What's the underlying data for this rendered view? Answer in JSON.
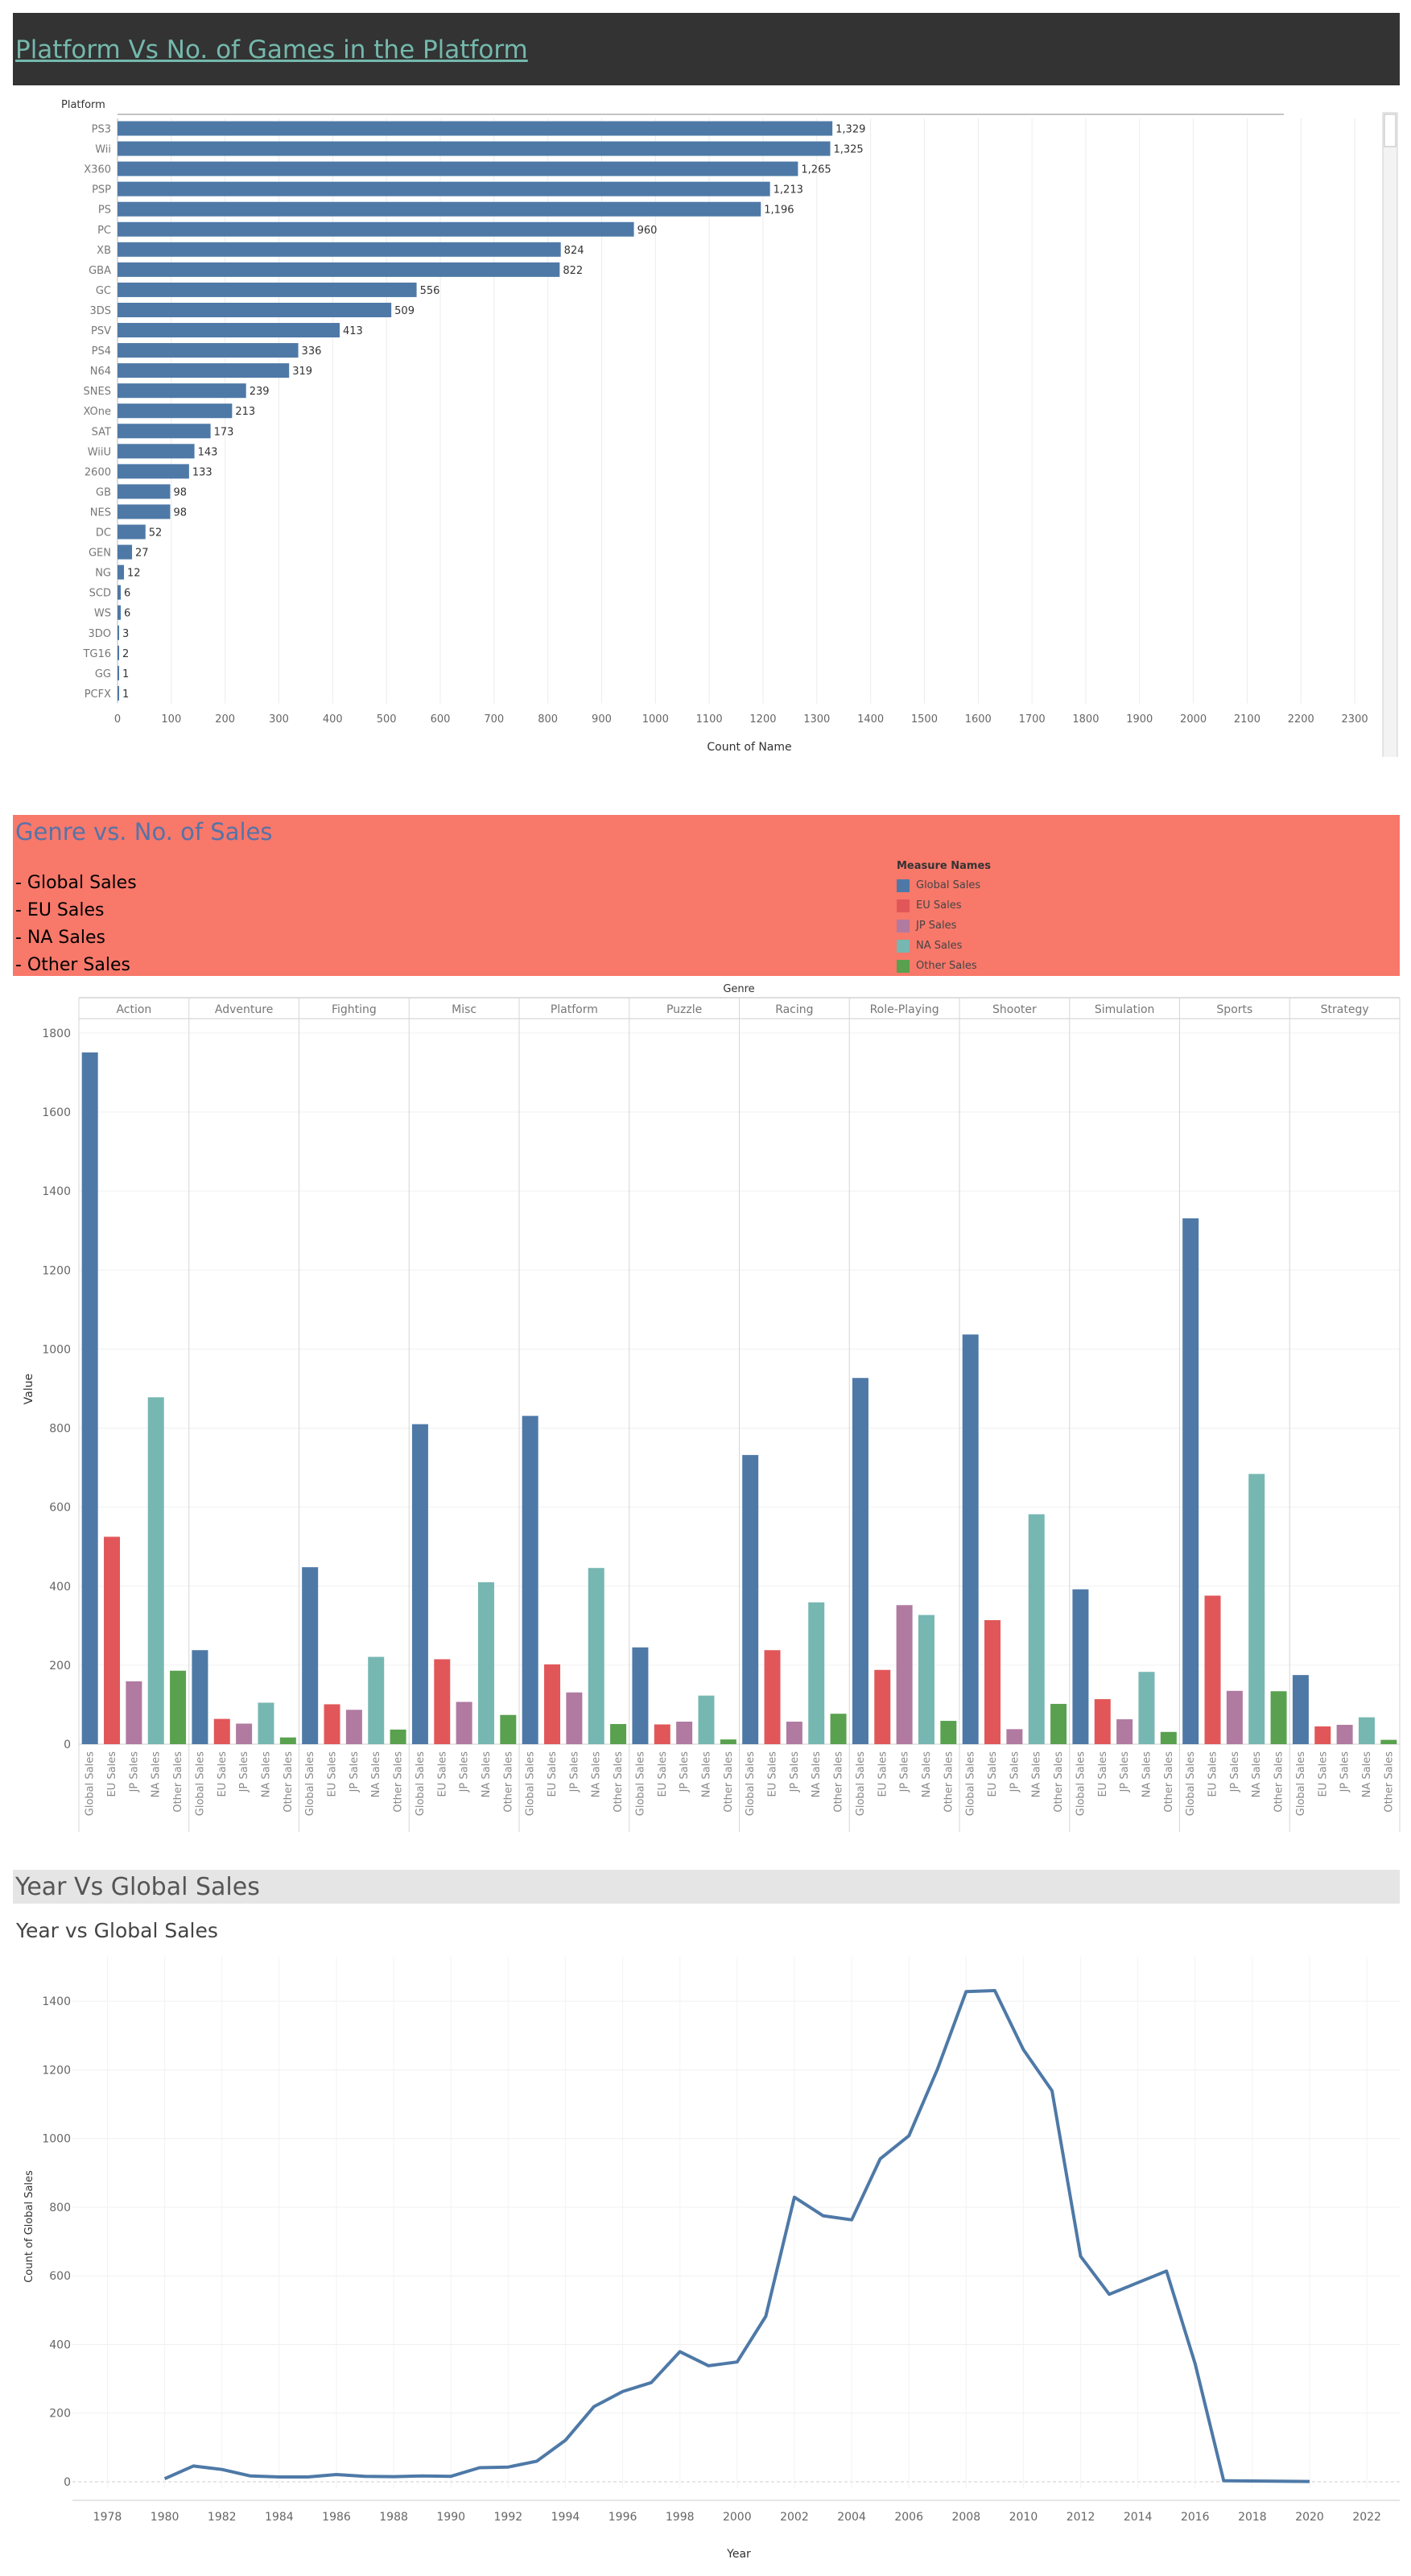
{
  "dashboard": {
    "platform_header": "Platform Vs No. of Games in the Platform",
    "genre_header": "Genre vs. No. of Sales",
    "genre_items": [
      "- Global Sales",
      "- EU Sales",
      "- NA Sales",
      "- Other Sales"
    ],
    "legend_title": "Measure Names",
    "year_header": "Year Vs Global Sales",
    "year_subtitle": "Year vs Global Sales"
  },
  "colors": {
    "bar": "#4e79a7",
    "global": "#4e79a7",
    "eu": "#e15759",
    "jp": "#b07aa1",
    "na": "#76b7b2",
    "other": "#59a14f",
    "line": "#4e79a7"
  },
  "chart_data": [
    {
      "type": "bar",
      "orientation": "horizontal",
      "row_header": "Platform",
      "xlabel": "Count of Name",
      "xlim": [
        0,
        2300
      ],
      "xticks": [
        0,
        100,
        200,
        300,
        400,
        500,
        600,
        700,
        800,
        900,
        1000,
        1100,
        1200,
        1300,
        1400,
        1500,
        1600,
        1700,
        1800,
        1900,
        2000,
        2100,
        2200,
        2300
      ],
      "categories": [
        "PS3",
        "Wii",
        "X360",
        "PSP",
        "PS",
        "PC",
        "XB",
        "GBA",
        "GC",
        "3DS",
        "PSV",
        "PS4",
        "N64",
        "SNES",
        "XOne",
        "SAT",
        "WiiU",
        "2600",
        "GB",
        "NES",
        "DC",
        "GEN",
        "NG",
        "SCD",
        "WS",
        "3DO",
        "TG16",
        "GG",
        "PCFX"
      ],
      "values": [
        1329,
        1325,
        1265,
        1213,
        1196,
        960,
        824,
        822,
        556,
        509,
        413,
        336,
        319,
        239,
        213,
        173,
        143,
        133,
        98,
        98,
        52,
        27,
        12,
        6,
        6,
        3,
        2,
        1,
        1
      ],
      "labels": [
        "1,329",
        "1,325",
        "1,265",
        "1,213",
        "1,196",
        "960",
        "824",
        "822",
        "556",
        "509",
        "413",
        "336",
        "319",
        "239",
        "213",
        "173",
        "143",
        "133",
        "98",
        "98",
        "52",
        "27",
        "12",
        "6",
        "6",
        "3",
        "2",
        "1",
        "1"
      ],
      "grid": true
    },
    {
      "type": "bar",
      "column_header": "Genre",
      "ylabel": "Value",
      "ylim": [
        0,
        1850
      ],
      "yticks": [
        0,
        200,
        400,
        600,
        800,
        1000,
        1200,
        1400,
        1600,
        1800
      ],
      "legend": "top-right",
      "legend_entries": [
        "Global Sales",
        "EU Sales",
        "JP Sales",
        "NA Sales",
        "Other Sales"
      ],
      "measures": [
        "Global Sales",
        "EU Sales",
        "JP Sales",
        "NA Sales",
        "Other Sales"
      ],
      "genres": [
        "Action",
        "Adventure",
        "Fighting",
        "Misc",
        "Platform",
        "Puzzle",
        "Racing",
        "Role-Playing",
        "Shooter",
        "Simulation",
        "Sports",
        "Strategy"
      ],
      "series": [
        {
          "name": "Global Sales",
          "values": [
            1751,
            238,
            448,
            810,
            831,
            245,
            732,
            927,
            1037,
            392,
            1331,
            175
          ]
        },
        {
          "name": "EU Sales",
          "values": [
            525,
            64,
            101,
            215,
            202,
            50,
            238,
            188,
            314,
            114,
            376,
            45
          ]
        },
        {
          "name": "JP Sales",
          "values": [
            159,
            52,
            87,
            107,
            131,
            57,
            57,
            352,
            38,
            63,
            135,
            49
          ]
        },
        {
          "name": "NA Sales",
          "values": [
            878,
            105,
            221,
            410,
            446,
            123,
            359,
            327,
            582,
            183,
            684,
            68
          ]
        },
        {
          "name": "Other Sales",
          "values": [
            186,
            17,
            37,
            74,
            51,
            12,
            77,
            59,
            102,
            31,
            134,
            11
          ]
        }
      ],
      "grid": true
    },
    {
      "type": "line",
      "title": "Year vs Global Sales",
      "xlabel": "Year",
      "ylabel": "Count of Global Sales",
      "xlim": [
        1977,
        2023
      ],
      "ylim": [
        0,
        1500
      ],
      "xticks": [
        1978,
        1980,
        1982,
        1984,
        1986,
        1988,
        1990,
        1992,
        1994,
        1996,
        1998,
        2000,
        2002,
        2004,
        2006,
        2008,
        2010,
        2012,
        2014,
        2016,
        2018,
        2020,
        2022
      ],
      "yticks": [
        0,
        200,
        400,
        600,
        800,
        1000,
        1200,
        1400
      ],
      "x": [
        1980,
        1981,
        1982,
        1983,
        1984,
        1985,
        1986,
        1987,
        1988,
        1989,
        1990,
        1991,
        1992,
        1993,
        1994,
        1995,
        1996,
        1997,
        1998,
        1999,
        2000,
        2001,
        2002,
        2003,
        2004,
        2005,
        2006,
        2007,
        2008,
        2009,
        2010,
        2011,
        2012,
        2013,
        2014,
        2015,
        2016,
        2017,
        2020
      ],
      "y": [
        9,
        46,
        36,
        17,
        14,
        14,
        21,
        16,
        15,
        17,
        16,
        41,
        43,
        60,
        121,
        219,
        263,
        289,
        379,
        338,
        349,
        482,
        829,
        775,
        763,
        941,
        1008,
        1202,
        1428,
        1431,
        1259,
        1139,
        657,
        546,
        580,
        614,
        344,
        3,
        1
      ],
      "grid": true
    }
  ]
}
